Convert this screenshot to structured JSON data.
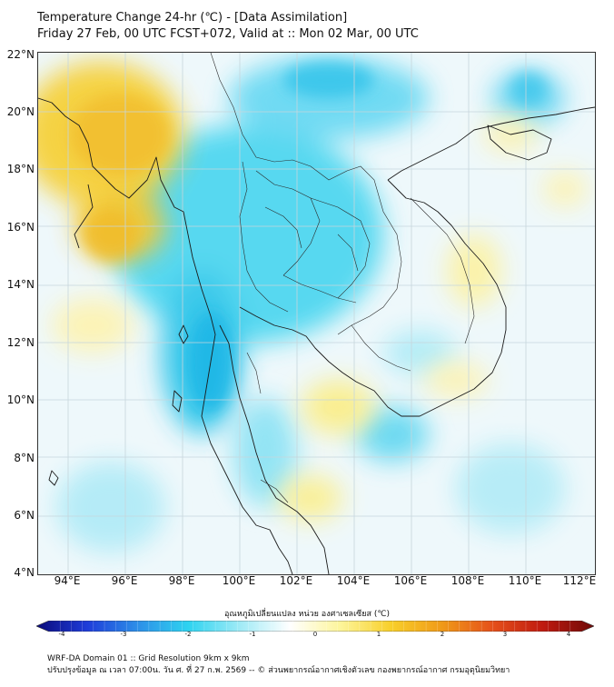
{
  "title": {
    "line1": "Temperature Change 24-hr (℃) - [Data Assimilation]",
    "line2": "Friday 27 Feb, 00 UTC FCST+072, Valid at :: Mon 02 Mar, 00 UTC"
  },
  "map": {
    "lat_ticks": [
      "22°N",
      "20°N",
      "18°N",
      "16°N",
      "14°N",
      "12°N",
      "10°N",
      "8°N",
      "6°N",
      "4°N"
    ],
    "lon_ticks": [
      "94°E",
      "96°E",
      "98°E",
      "100°E",
      "102°E",
      "104°E",
      "106°E",
      "108°E",
      "110°E",
      "112°E"
    ],
    "extent": {
      "lon": [
        93,
        112.5
      ],
      "lat": [
        4,
        22.2
      ]
    }
  },
  "colorbar": {
    "label": "อุณหภูมิเปลี่ยนแปลง หน่วย องศาเซลเซียส (℃)",
    "ticks": [
      "-4",
      "-3",
      "-2",
      "-1",
      "0",
      "1",
      "2",
      "3",
      "4"
    ],
    "range": [
      -4,
      4
    ],
    "colors": [
      "#0b0b7a",
      "#1e3cd9",
      "#2d8fe8",
      "#2ed3f0",
      "#9eeaf6",
      "#ffffff",
      "#fdf59a",
      "#f8cf2a",
      "#f09a18",
      "#e5501a",
      "#bf1a10",
      "#6e0a08"
    ]
  },
  "footer": {
    "line1": "WRF-DA Domain 01 :: Grid Resolution 9km x 9km",
    "line2": "ปรับปรุงข้อมูล ณ เวลา 07:00น. วัน ศ. ที่ 27 ก.พ. 2569 -- © ส่วนพยากรณ์อากาศเชิงตัวเลข กองพยากรณ์อากาศ กรมอุตุนิยมวิทยา"
  }
}
